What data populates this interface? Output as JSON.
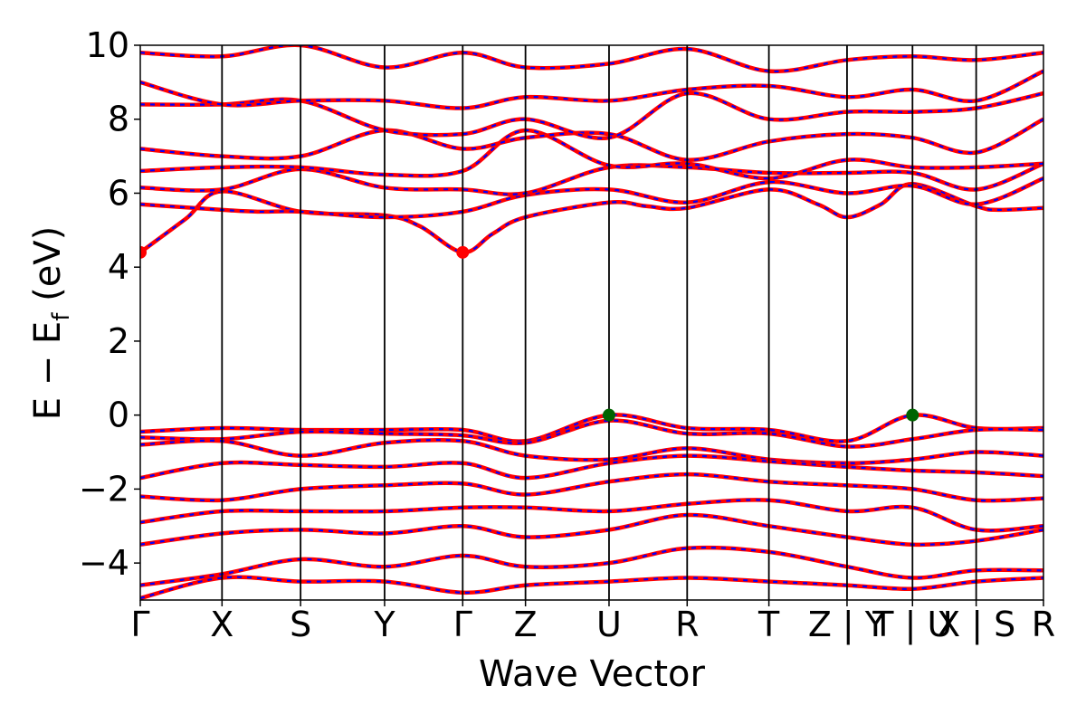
{
  "chart_data": {
    "type": "line",
    "title": "",
    "xlabel": "Wave Vector",
    "ylabel": "E − E",
    "ylabel_sub": "f",
    "ylabel_unit": " (eV)",
    "ylim": [
      -5,
      10
    ],
    "yticks": [
      -4,
      -2,
      0,
      2,
      4,
      6,
      8,
      10
    ],
    "ytick_labels": [
      "−4",
      "−2",
      "0",
      "2",
      "4",
      "6",
      "8",
      "10"
    ],
    "grid": false,
    "legend": "none",
    "kpath": {
      "positions": [
        0,
        0.0905,
        0.1775,
        0.2705,
        0.357,
        0.4265,
        0.519,
        0.6055,
        0.696,
        0.7825,
        0.855,
        0.9255,
        1.0
      ],
      "labels": [
        "Γ",
        "X",
        "S",
        "Y",
        "Γ",
        "Z",
        "U",
        "R",
        "T",
        "Z | Y",
        "T | U",
        "X | S",
        "R"
      ]
    },
    "series": [
      {
        "color": "#ff0000",
        "style": "solid"
      },
      {
        "color": "#0000ff",
        "style": "dashed"
      }
    ],
    "conduction_bands": [
      [
        [
          0.0,
          4.4
        ],
        [
          0.05,
          5.3
        ],
        [
          0.0905,
          6.05
        ],
        [
          0.1775,
          5.5
        ],
        [
          0.2705,
          5.4
        ],
        [
          0.31,
          5.1
        ],
        [
          0.357,
          4.4
        ],
        [
          0.39,
          4.9
        ],
        [
          0.4265,
          5.35
        ],
        [
          0.519,
          5.75
        ],
        [
          0.56,
          5.65
        ],
        [
          0.6055,
          5.6
        ],
        [
          0.696,
          6.1
        ],
        [
          0.75,
          5.7
        ],
        [
          0.7825,
          5.35
        ],
        [
          0.82,
          5.7
        ],
        [
          0.855,
          6.25
        ],
        [
          0.9255,
          5.65
        ],
        [
          0.95,
          5.55
        ],
        [
          1.0,
          5.6
        ]
      ],
      [
        [
          0.0,
          5.7
        ],
        [
          0.0905,
          5.55
        ],
        [
          0.13,
          5.5
        ],
        [
          0.1775,
          5.5
        ],
        [
          0.2705,
          5.35
        ],
        [
          0.357,
          5.5
        ],
        [
          0.4265,
          5.95
        ],
        [
          0.519,
          6.1
        ],
        [
          0.6055,
          5.75
        ],
        [
          0.696,
          6.3
        ],
        [
          0.7825,
          6.0
        ],
        [
          0.855,
          6.2
        ],
        [
          0.9255,
          5.7
        ],
        [
          1.0,
          6.4
        ]
      ],
      [
        [
          0.0,
          6.15
        ],
        [
          0.0905,
          6.1
        ],
        [
          0.1775,
          6.65
        ],
        [
          0.2705,
          6.15
        ],
        [
          0.357,
          6.1
        ],
        [
          0.4265,
          6.0
        ],
        [
          0.519,
          6.7
        ],
        [
          0.6055,
          6.7
        ],
        [
          0.696,
          6.55
        ],
        [
          0.7825,
          6.55
        ],
        [
          0.855,
          6.55
        ],
        [
          0.9255,
          6.1
        ],
        [
          1.0,
          6.8
        ]
      ],
      [
        [
          0.0,
          6.6
        ],
        [
          0.0905,
          6.7
        ],
        [
          0.1775,
          6.7
        ],
        [
          0.2705,
          6.5
        ],
        [
          0.357,
          6.6
        ],
        [
          0.4265,
          7.7
        ],
        [
          0.519,
          6.75
        ],
        [
          0.6055,
          6.8
        ],
        [
          0.696,
          6.4
        ],
        [
          0.7825,
          6.9
        ],
        [
          0.855,
          6.7
        ],
        [
          0.9255,
          6.7
        ],
        [
          1.0,
          6.8
        ]
      ],
      [
        [
          0.0,
          7.2
        ],
        [
          0.0905,
          7.0
        ],
        [
          0.1775,
          7.0
        ],
        [
          0.2705,
          7.7
        ],
        [
          0.357,
          7.2
        ],
        [
          0.4265,
          7.5
        ],
        [
          0.519,
          7.6
        ],
        [
          0.6055,
          6.9
        ],
        [
          0.696,
          7.4
        ],
        [
          0.7825,
          7.6
        ],
        [
          0.855,
          7.5
        ],
        [
          0.9255,
          7.1
        ],
        [
          1.0,
          8.0
        ]
      ],
      [
        [
          0.0,
          8.4
        ],
        [
          0.0905,
          8.4
        ],
        [
          0.1775,
          8.5
        ],
        [
          0.2705,
          7.7
        ],
        [
          0.357,
          7.6
        ],
        [
          0.4265,
          8.0
        ],
        [
          0.519,
          7.5
        ],
        [
          0.6055,
          8.7
        ],
        [
          0.696,
          8.0
        ],
        [
          0.7825,
          8.2
        ],
        [
          0.855,
          8.2
        ],
        [
          0.9255,
          8.3
        ],
        [
          1.0,
          8.7
        ]
      ],
      [
        [
          0.0,
          9.0
        ],
        [
          0.0905,
          8.4
        ],
        [
          0.1775,
          8.5
        ],
        [
          0.2705,
          8.5
        ],
        [
          0.357,
          8.3
        ],
        [
          0.4265,
          8.6
        ],
        [
          0.519,
          8.5
        ],
        [
          0.6055,
          8.8
        ],
        [
          0.696,
          8.9
        ],
        [
          0.7825,
          8.6
        ],
        [
          0.855,
          8.8
        ],
        [
          0.9255,
          8.5
        ],
        [
          1.0,
          9.3
        ]
      ],
      [
        [
          0.0,
          9.8
        ],
        [
          0.0905,
          9.7
        ],
        [
          0.1775,
          10.0
        ],
        [
          0.2705,
          9.4
        ],
        [
          0.357,
          9.8
        ],
        [
          0.4265,
          9.4
        ],
        [
          0.519,
          9.5
        ],
        [
          0.6055,
          9.9
        ],
        [
          0.696,
          9.3
        ],
        [
          0.7825,
          9.6
        ],
        [
          0.855,
          9.7
        ],
        [
          0.9255,
          9.6
        ],
        [
          1.0,
          9.8
        ]
      ]
    ],
    "valence_bands": [
      [
        [
          0.0,
          -0.45
        ],
        [
          0.0905,
          -0.35
        ],
        [
          0.1775,
          -0.4
        ],
        [
          0.2705,
          -0.4
        ],
        [
          0.357,
          -0.4
        ],
        [
          0.4265,
          -0.7
        ],
        [
          0.519,
          0.0
        ],
        [
          0.6055,
          -0.35
        ],
        [
          0.696,
          -0.4
        ],
        [
          0.7825,
          -0.7
        ],
        [
          0.855,
          0.0
        ],
        [
          0.9255,
          -0.35
        ],
        [
          1.0,
          -0.35
        ]
      ],
      [
        [
          0.0,
          -0.6
        ],
        [
          0.0905,
          -0.65
        ],
        [
          0.1775,
          -0.45
        ],
        [
          0.2705,
          -0.5
        ],
        [
          0.357,
          -0.55
        ],
        [
          0.4265,
          -0.75
        ],
        [
          0.519,
          -0.15
        ],
        [
          0.6055,
          -0.5
        ],
        [
          0.696,
          -0.5
        ],
        [
          0.7825,
          -0.85
        ],
        [
          0.855,
          -0.65
        ],
        [
          0.9255,
          -0.4
        ],
        [
          1.0,
          -0.4
        ]
      ],
      [
        [
          0.0,
          -0.8
        ],
        [
          0.0905,
          -0.7
        ],
        [
          0.1775,
          -1.1
        ],
        [
          0.2705,
          -0.75
        ],
        [
          0.357,
          -0.7
        ],
        [
          0.4265,
          -1.1
        ],
        [
          0.519,
          -1.2
        ],
        [
          0.6055,
          -0.9
        ],
        [
          0.696,
          -1.2
        ],
        [
          0.7825,
          -1.3
        ],
        [
          0.855,
          -1.2
        ],
        [
          0.9255,
          -1.0
        ],
        [
          1.0,
          -1.1
        ]
      ],
      [
        [
          0.0,
          -1.7
        ],
        [
          0.0905,
          -1.3
        ],
        [
          0.1775,
          -1.35
        ],
        [
          0.2705,
          -1.4
        ],
        [
          0.357,
          -1.3
        ],
        [
          0.4265,
          -1.7
        ],
        [
          0.519,
          -1.3
        ],
        [
          0.6055,
          -1.1
        ],
        [
          0.696,
          -1.25
        ],
        [
          0.7825,
          -1.4
        ],
        [
          0.855,
          -1.5
        ],
        [
          0.9255,
          -1.55
        ],
        [
          1.0,
          -1.65
        ]
      ],
      [
        [
          0.0,
          -2.2
        ],
        [
          0.0905,
          -2.3
        ],
        [
          0.1775,
          -2.0
        ],
        [
          0.2705,
          -1.9
        ],
        [
          0.357,
          -1.85
        ],
        [
          0.4265,
          -2.15
        ],
        [
          0.519,
          -1.8
        ],
        [
          0.6055,
          -1.6
        ],
        [
          0.696,
          -1.8
        ],
        [
          0.7825,
          -1.9
        ],
        [
          0.855,
          -2.0
        ],
        [
          0.9255,
          -2.3
        ],
        [
          1.0,
          -2.25
        ]
      ],
      [
        [
          0.0,
          -2.9
        ],
        [
          0.0905,
          -2.6
        ],
        [
          0.1775,
          -2.6
        ],
        [
          0.2705,
          -2.6
        ],
        [
          0.357,
          -2.5
        ],
        [
          0.4265,
          -2.5
        ],
        [
          0.519,
          -2.6
        ],
        [
          0.6055,
          -2.4
        ],
        [
          0.696,
          -2.3
        ],
        [
          0.7825,
          -2.6
        ],
        [
          0.855,
          -2.5
        ],
        [
          0.9255,
          -3.1
        ],
        [
          1.0,
          -3.0
        ]
      ],
      [
        [
          0.0,
          -3.5
        ],
        [
          0.0905,
          -3.2
        ],
        [
          0.1775,
          -3.1
        ],
        [
          0.2705,
          -3.2
        ],
        [
          0.357,
          -3.0
        ],
        [
          0.4265,
          -3.3
        ],
        [
          0.519,
          -3.1
        ],
        [
          0.6055,
          -2.7
        ],
        [
          0.696,
          -3.0
        ],
        [
          0.7825,
          -3.3
        ],
        [
          0.855,
          -3.5
        ],
        [
          0.9255,
          -3.4
        ],
        [
          1.0,
          -3.1
        ]
      ],
      [
        [
          0.0,
          -4.6
        ],
        [
          0.0905,
          -4.3
        ],
        [
          0.1775,
          -3.9
        ],
        [
          0.2705,
          -4.1
        ],
        [
          0.357,
          -3.8
        ],
        [
          0.4265,
          -4.1
        ],
        [
          0.519,
          -4.0
        ],
        [
          0.6055,
          -3.6
        ],
        [
          0.696,
          -3.7
        ],
        [
          0.7825,
          -4.1
        ],
        [
          0.855,
          -4.4
        ],
        [
          0.9255,
          -4.2
        ],
        [
          1.0,
          -4.2
        ]
      ],
      [
        [
          0.0,
          -4.95
        ],
        [
          0.0905,
          -4.4
        ],
        [
          0.1775,
          -4.5
        ],
        [
          0.2705,
          -4.5
        ],
        [
          0.357,
          -4.8
        ],
        [
          0.4265,
          -4.6
        ],
        [
          0.519,
          -4.5
        ],
        [
          0.6055,
          -4.4
        ],
        [
          0.696,
          -4.5
        ],
        [
          0.7825,
          -4.6
        ],
        [
          0.855,
          -4.7
        ],
        [
          0.9255,
          -4.5
        ],
        [
          1.0,
          -4.4
        ]
      ]
    ],
    "cbm_points": [
      {
        "x": 0.0,
        "y": 4.4
      },
      {
        "x": 0.357,
        "y": 4.4
      }
    ],
    "vbm_points": [
      {
        "x": 0.519,
        "y": 0.0
      },
      {
        "x": 0.855,
        "y": 0.0
      }
    ],
    "cbm_color": "#ff0000",
    "vbm_color": "#006400"
  }
}
